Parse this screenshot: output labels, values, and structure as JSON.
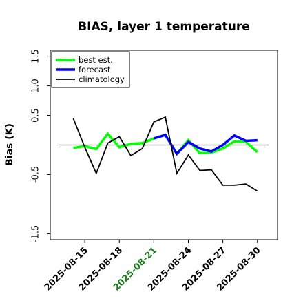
{
  "chart_data": {
    "type": "line",
    "title": "BIAS, layer 1 temperature",
    "ylabel": "Bias (K)",
    "xlabel": "",
    "ylim": [
      -1.6,
      1.6
    ],
    "yticks": [
      -1.5,
      -0.5,
      0.5,
      1.0,
      1.5
    ],
    "ytick_labels": [
      "-1.5",
      "-0.5",
      "0.5",
      "1.0",
      "1.5"
    ],
    "xticks": [
      {
        "day": 15,
        "label": "2025-08-15",
        "color": "#000000"
      },
      {
        "day": 18,
        "label": "2025-08-18",
        "color": "#000000"
      },
      {
        "day": 21,
        "label": "2025-08-21",
        "color": "#1a7f1a"
      },
      {
        "day": 24,
        "label": "2025-08-24",
        "color": "#000000"
      },
      {
        "day": 27,
        "label": "2025-08-27",
        "color": "#000000"
      },
      {
        "day": 30,
        "label": "2025-08-30",
        "color": "#000000"
      }
    ],
    "xlim_days": [
      12.0,
      31.75
    ],
    "reference_line": 0,
    "legend_position": "top-left",
    "series": [
      {
        "name": "best est.",
        "color": "#00ff00",
        "width": 3.5,
        "days": [
          14,
          15,
          16,
          17,
          18,
          19,
          20,
          21,
          22,
          23,
          24,
          25,
          26,
          27,
          28,
          29,
          30
        ],
        "values": [
          -0.05,
          -0.02,
          -0.07,
          0.19,
          -0.04,
          0.02,
          0.03,
          0.11,
          0.17,
          -0.15,
          0.08,
          -0.14,
          -0.13,
          -0.06,
          0.06,
          0.05,
          -0.12
        ]
      },
      {
        "name": "forecast",
        "color": "#0000ff",
        "width": 3.5,
        "days": [
          21,
          22,
          23,
          24,
          25,
          26,
          27,
          28,
          29,
          30
        ],
        "values": [
          0.11,
          0.17,
          -0.15,
          0.05,
          -0.06,
          -0.11,
          0.0,
          0.16,
          0.07,
          0.08
        ]
      },
      {
        "name": "climatology",
        "color": "#000000",
        "width": 1.8,
        "days": [
          14,
          15,
          16,
          17,
          18,
          19,
          20,
          21,
          22,
          23,
          24,
          25,
          26,
          27,
          28,
          29,
          30
        ],
        "values": [
          0.45,
          -0.04,
          -0.48,
          0.03,
          0.14,
          -0.18,
          -0.06,
          0.39,
          0.47,
          -0.48,
          -0.17,
          -0.43,
          -0.42,
          -0.68,
          -0.68,
          -0.66,
          -0.78
        ]
      }
    ]
  }
}
